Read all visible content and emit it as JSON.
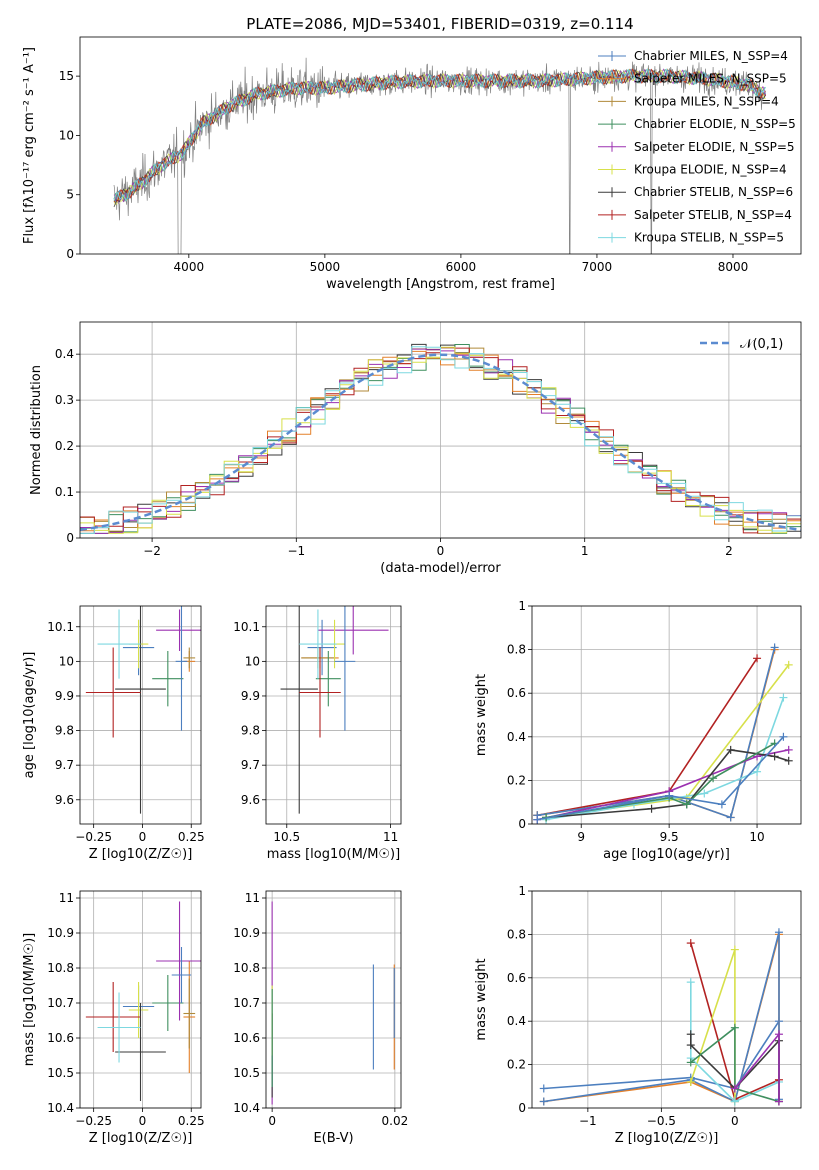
{
  "figure_title": "PLATE=2086, MJD=53401, FIBERID=0319, z=0.114",
  "colors": {
    "grey": "#808080",
    "dashed": "#5b8bd0",
    "series": [
      "#4c7fbf",
      "#e4802a",
      "#b08a3a",
      "#3f8f5f",
      "#9b30b0",
      "#d7e04a",
      "#3a3a3a",
      "#b22222",
      "#7dd8e0"
    ]
  },
  "chart_data": [
    {
      "id": "spectrum",
      "type": "line",
      "xlabel": "wavelength [Angstrom, rest frame]",
      "ylabel": "Flux [fλ10⁻¹⁷ erg cm⁻² s⁻¹ A⁻¹]",
      "xlim": [
        3200,
        8500
      ],
      "ylim": [
        0,
        18.3
      ],
      "xticks": [
        4000,
        5000,
        6000,
        7000,
        8000
      ],
      "yticks": [
        0,
        5,
        10,
        15
      ],
      "grid": false,
      "legend_position": "right",
      "legend": [
        "Chabrier MILES, N_SSP=4",
        "Salpeter MILES, N_SSP=5",
        "Kroupa MILES, N_SSP=4",
        "Chabrier ELODIE, N_SSP=5",
        "Salpeter ELODIE, N_SSP=5",
        "Kroupa ELODIE, N_SSP=4",
        "Chabrier STELIB, N_SSP=6",
        "Salpeter STELIB, N_SSP=4",
        "Kroupa STELIB, N_SSP=5"
      ],
      "continuum": {
        "x": [
          3450,
          3600,
          3800,
          3950,
          4100,
          4300,
          4500,
          4800,
          5000,
          5200,
          5500,
          5800,
          6000,
          6300,
          6600,
          6900,
          7200,
          7500,
          7800,
          8100,
          8240
        ],
        "y": [
          4.5,
          5.5,
          7.5,
          8.5,
          11.0,
          12.5,
          13.5,
          14.0,
          14.0,
          14.2,
          14.5,
          14.6,
          14.6,
          14.6,
          14.6,
          14.8,
          15.0,
          15.0,
          14.8,
          14.3,
          13.5
        ]
      }
    },
    {
      "id": "residual-histogram",
      "type": "histogram",
      "xlabel": "(data-model)/error",
      "ylabel": "Normed distribution",
      "xlim": [
        -2.5,
        2.5
      ],
      "ylim": [
        0,
        0.47
      ],
      "xticks": [
        -2,
        -1,
        0,
        1,
        2
      ],
      "yticks": [
        0.0,
        0.1,
        0.2,
        0.3,
        0.4
      ],
      "grid": true,
      "bin_width": 0.1,
      "legend": [
        "𝒩(0,1)"
      ],
      "legend_position": "top-right",
      "reference_curve": "normal(0,1)"
    },
    {
      "id": "age-vs-z",
      "type": "errorbar",
      "xlabel": "Z [log10(Z/Z☉)]",
      "ylabel": "age  [log10(age/yr)]",
      "xlim": [
        -0.32,
        0.3
      ],
      "ylim": [
        9.53,
        10.16
      ],
      "xticks": [
        -0.25,
        0.0,
        0.25
      ],
      "yticks": [
        9.6,
        9.7,
        9.8,
        9.9,
        10.0,
        10.1
      ],
      "grid": true,
      "points": [
        {
          "x": -0.02,
          "y": 10.04,
          "xerr": 0.08,
          "yerr": 0.08,
          "c": 0
        },
        {
          "x": 0.24,
          "y": 10.0,
          "xerr": 0.03,
          "yerr": 0.03,
          "c": 1
        },
        {
          "x": 0.24,
          "y": 10.01,
          "xerr": 0.03,
          "yerr": 0.03,
          "c": 2
        },
        {
          "x": 0.13,
          "y": 9.95,
          "xerr": 0.08,
          "yerr": 0.08,
          "c": 3
        },
        {
          "x": 0.19,
          "y": 10.09,
          "xerr": 0.12,
          "yerr": 0.06,
          "c": 4
        },
        {
          "x": -0.02,
          "y": 10.05,
          "xerr": 0.05,
          "yerr": 0.07,
          "c": 5
        },
        {
          "x": -0.01,
          "y": 9.92,
          "xerr": 0.13,
          "yerr": 0.36,
          "c": 6
        },
        {
          "x": -0.15,
          "y": 9.91,
          "xerr": 0.14,
          "yerr": 0.13,
          "c": 7
        },
        {
          "x": -0.12,
          "y": 10.05,
          "xerr": 0.11,
          "yerr": 0.1,
          "c": 8
        },
        {
          "x": 0.2,
          "y": 10.0,
          "xerr": 0.03,
          "yerr": 0.2,
          "c": 9
        }
      ]
    },
    {
      "id": "age-vs-mass",
      "type": "errorbar",
      "xlabel": "mass [log10(M/M☉)]",
      "ylabel": "",
      "xlim": [
        10.4,
        11.05
      ],
      "ylim": [
        9.53,
        10.16
      ],
      "xticks": [
        10.5,
        11.0
      ],
      "yticks": [
        9.6,
        9.7,
        9.8,
        9.9,
        10.0,
        10.1
      ],
      "grid": true,
      "points": [
        {
          "x": 10.67,
          "y": 10.04,
          "xerr": 0.07,
          "yerr": 0.08,
          "c": 0
        },
        {
          "x": 10.66,
          "y": 10.01,
          "xerr": 0.09,
          "yerr": 0.03,
          "c": 1
        },
        {
          "x": 10.65,
          "y": 10.01,
          "xerr": 0.08,
          "yerr": 0.03,
          "c": 2
        },
        {
          "x": 10.7,
          "y": 9.95,
          "xerr": 0.06,
          "yerr": 0.08,
          "c": 3
        },
        {
          "x": 10.82,
          "y": 10.09,
          "xerr": 0.17,
          "yerr": 0.07,
          "c": 4
        },
        {
          "x": 10.73,
          "y": 10.05,
          "xerr": 0.05,
          "yerr": 0.07,
          "c": 5
        },
        {
          "x": 10.56,
          "y": 9.92,
          "xerr": 0.09,
          "yerr": 0.36,
          "c": 6
        },
        {
          "x": 10.66,
          "y": 9.91,
          "xerr": 0.1,
          "yerr": 0.13,
          "c": 7
        },
        {
          "x": 10.65,
          "y": 10.05,
          "xerr": 0.09,
          "yerr": 0.1,
          "c": 8
        },
        {
          "x": 10.78,
          "y": 10.0,
          "xerr": 0.05,
          "yerr": 0.2,
          "c": 9
        }
      ]
    },
    {
      "id": "weight-vs-age",
      "type": "line",
      "xlabel": "age  [log10(age/yr)]",
      "ylabel": "mass weight",
      "xlim": [
        8.72,
        10.25
      ],
      "ylim": [
        0.0,
        1.0
      ],
      "xticks": [
        9.0,
        9.5,
        10.0
      ],
      "yticks": [
        0.0,
        0.2,
        0.4,
        0.6,
        0.8,
        1.0
      ],
      "grid": true,
      "series": [
        {
          "c": 7,
          "x": [
            8.75,
            9.5,
            10.0
          ],
          "y": [
            0.04,
            0.15,
            0.76
          ]
        },
        {
          "c": 1,
          "x": [
            8.75,
            9.5,
            9.85,
            10.1
          ],
          "y": [
            0.04,
            0.13,
            0.03,
            0.8
          ]
        },
        {
          "c": 0,
          "x": [
            8.75,
            9.5,
            9.85,
            10.1
          ],
          "y": [
            0.04,
            0.13,
            0.03,
            0.81
          ]
        },
        {
          "c": 5,
          "x": [
            8.8,
            9.6,
            10.18
          ],
          "y": [
            0.03,
            0.12,
            0.73
          ]
        },
        {
          "c": 8,
          "x": [
            8.8,
            9.3,
            9.7,
            10.0,
            10.15
          ],
          "y": [
            0.02,
            0.09,
            0.14,
            0.24,
            0.58
          ]
        },
        {
          "c": 4,
          "x": [
            8.75,
            9.5,
            10.0,
            10.18
          ],
          "y": [
            0.02,
            0.15,
            0.31,
            0.34
          ]
        },
        {
          "c": 6,
          "x": [
            8.8,
            9.4,
            9.6,
            9.85,
            10.1,
            10.18
          ],
          "y": [
            0.03,
            0.07,
            0.09,
            0.34,
            0.31,
            0.29
          ]
        },
        {
          "c": 3,
          "x": [
            8.8,
            9.5,
            9.6,
            9.75,
            10.1
          ],
          "y": [
            0.03,
            0.12,
            0.09,
            0.21,
            0.37
          ]
        },
        {
          "c": 9,
          "x": [
            8.75,
            9.5,
            9.8,
            10.15
          ],
          "y": [
            0.02,
            0.13,
            0.09,
            0.4
          ]
        }
      ]
    },
    {
      "id": "mass-vs-z",
      "type": "errorbar",
      "xlabel": "Z [log10(Z/Z☉)]",
      "ylabel": "mass [log10(M/M☉)]",
      "xlim": [
        -0.32,
        0.3
      ],
      "ylim": [
        10.4,
        11.02
      ],
      "xticks": [
        -0.25,
        0.0,
        0.25
      ],
      "yticks": [
        10.4,
        10.5,
        10.6,
        10.7,
        10.8,
        10.9,
        11.0
      ],
      "grid": true,
      "points": [
        {
          "x": -0.02,
          "y": 10.69,
          "xerr": 0.08,
          "yerr": 0.06,
          "c": 0
        },
        {
          "x": 0.24,
          "y": 10.66,
          "xerr": 0.03,
          "yerr": 0.16,
          "c": 1
        },
        {
          "x": 0.24,
          "y": 10.67,
          "xerr": 0.03,
          "yerr": 0.1,
          "c": 2
        },
        {
          "x": 0.13,
          "y": 10.7,
          "xerr": 0.08,
          "yerr": 0.08,
          "c": 3
        },
        {
          "x": 0.19,
          "y": 10.82,
          "xerr": 0.12,
          "yerr": 0.17,
          "c": 4
        },
        {
          "x": -0.02,
          "y": 10.68,
          "xerr": 0.05,
          "yerr": 0.08,
          "c": 5
        },
        {
          "x": -0.01,
          "y": 10.56,
          "xerr": 0.13,
          "yerr": 0.14,
          "c": 6
        },
        {
          "x": -0.15,
          "y": 10.66,
          "xerr": 0.14,
          "yerr": 0.1,
          "c": 7
        },
        {
          "x": -0.12,
          "y": 10.63,
          "xerr": 0.11,
          "yerr": 0.1,
          "c": 8
        },
        {
          "x": 0.2,
          "y": 10.78,
          "xerr": 0.05,
          "yerr": 0.08,
          "c": 9
        }
      ]
    },
    {
      "id": "mass-vs-ebv",
      "type": "errorbar",
      "xlabel": "E(B-V)",
      "ylabel": "",
      "xlim": [
        -0.001,
        0.021
      ],
      "ylim": [
        10.4,
        11.02
      ],
      "xticks": [
        0.0,
        0.02
      ],
      "yticks": [
        10.4,
        10.5,
        10.6,
        10.7,
        10.8,
        10.9,
        11.0
      ],
      "grid": true,
      "points": [
        {
          "x": 0.0,
          "y": 10.7,
          "xerr": 0,
          "yerr": 0.29,
          "c": 4
        },
        {
          "x": 0.0,
          "y": 10.6,
          "xerr": 0,
          "yerr": 0.14,
          "c": 8
        },
        {
          "x": 0.0,
          "y": 10.55,
          "xerr": 0,
          "yerr": 0.12,
          "c": 6
        },
        {
          "x": 0.0,
          "y": 10.65,
          "xerr": 0,
          "yerr": 0.1,
          "c": 5
        },
        {
          "x": 0.0,
          "y": 10.6,
          "xerr": 0,
          "yerr": 0.14,
          "c": 3
        },
        {
          "x": 0.0165,
          "y": 10.66,
          "xerr": 0,
          "yerr": 0.15,
          "c": 0
        },
        {
          "x": 0.0199,
          "y": 10.66,
          "xerr": 0,
          "yerr": 0.15,
          "c": 1
        },
        {
          "x": 0.0199,
          "y": 10.7,
          "xerr": 0,
          "yerr": 0.1,
          "c": 9
        }
      ]
    },
    {
      "id": "weight-vs-z",
      "type": "line",
      "xlabel": "Z [log10(Z/Z☉)]",
      "ylabel": "mass weight",
      "xlim": [
        -1.38,
        0.45
      ],
      "ylim": [
        0.0,
        1.0
      ],
      "xticks": [
        -1.0,
        -0.5,
        0.0
      ],
      "yticks": [
        0.0,
        0.2,
        0.4,
        0.6,
        0.8,
        1.0
      ],
      "grid": true,
      "series": [
        {
          "c": 9,
          "x": [
            -1.3,
            -0.3,
            0.0,
            0.3
          ],
          "y": [
            0.09,
            0.14,
            0.09,
            0.4
          ]
        },
        {
          "c": 1,
          "x": [
            -1.3,
            -0.3,
            0.0,
            0.3,
            0.3
          ],
          "y": [
            0.03,
            0.12,
            0.03,
            0.8,
            0.03
          ]
        },
        {
          "c": 0,
          "x": [
            -1.3,
            -0.3,
            0.0,
            0.3,
            0.3
          ],
          "y": [
            0.03,
            0.13,
            0.03,
            0.81,
            0.04
          ]
        },
        {
          "c": 7,
          "x": [
            -0.3,
            0.0,
            0.3
          ],
          "y": [
            0.76,
            0.04,
            0.13
          ]
        },
        {
          "c": 5,
          "x": [
            -0.3,
            0.0,
            0.0
          ],
          "y": [
            0.12,
            0.73,
            0.03
          ]
        },
        {
          "c": 8,
          "x": [
            -0.3,
            -0.3,
            0.0,
            0.3
          ],
          "y": [
            0.58,
            0.23,
            0.03,
            0.12
          ]
        },
        {
          "c": 6,
          "x": [
            -0.3,
            -0.3,
            0.0,
            0.3,
            0.3
          ],
          "y": [
            0.34,
            0.29,
            0.09,
            0.31,
            0.03
          ]
        },
        {
          "c": 3,
          "x": [
            -0.3,
            0.0,
            0.0,
            0.3
          ],
          "y": [
            0.21,
            0.37,
            0.09,
            0.03
          ]
        },
        {
          "c": 4,
          "x": [
            0.0,
            0.3,
            0.3
          ],
          "y": [
            0.09,
            0.34,
            0.03
          ]
        }
      ]
    }
  ]
}
